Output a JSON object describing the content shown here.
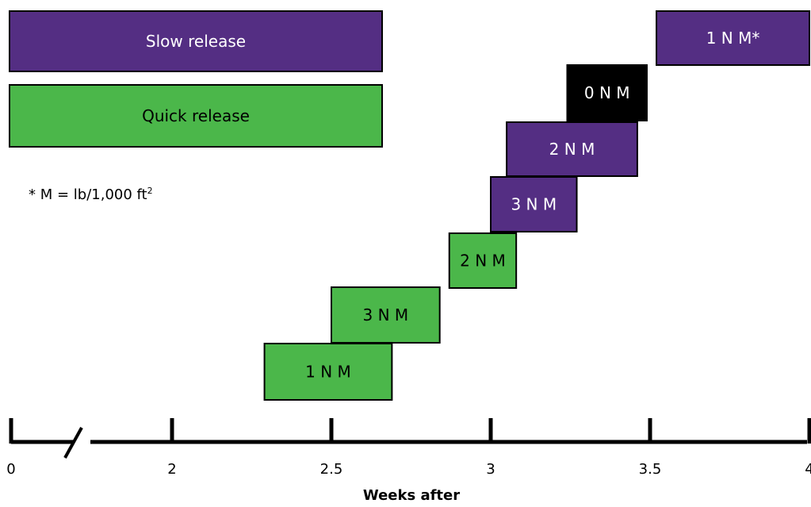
{
  "chart_data": {
    "type": "bar",
    "orientation": "horizontal-timeline",
    "xlabel": "Weeks after",
    "x_ticks": [
      "0",
      "2",
      "2.5",
      "3",
      "3.5",
      "4"
    ],
    "axis_break_after": "0",
    "legend": [
      {
        "name": "Slow release",
        "color": "#542e83"
      },
      {
        "name": "Quick release",
        "color": "#4bb74a"
      }
    ],
    "footnote": {
      "text": "* M = lb/1,000 ft",
      "superscript": "2"
    },
    "bars": [
      {
        "label": "1 N M*",
        "type": "Slow release",
        "start": 3.52,
        "end": 4.0,
        "color": "#542e83",
        "text_color": "#ffffff"
      },
      {
        "label": "0 N M",
        "type": "none",
        "start": 3.24,
        "end": 3.49,
        "color": "#000000",
        "text_color": "#ffffff"
      },
      {
        "label": "2 N M",
        "type": "Slow release",
        "start": 3.05,
        "end": 3.46,
        "color": "#542e83",
        "text_color": "#ffffff"
      },
      {
        "label": "3 N M",
        "type": "Slow release",
        "start": 3.0,
        "end": 3.27,
        "color": "#542e83",
        "text_color": "#ffffff"
      },
      {
        "label": "2 N M",
        "type": "Quick release",
        "start": 2.87,
        "end": 3.08,
        "color": "#4bb74a",
        "text_color": "#000000"
      },
      {
        "label": "3 N M",
        "type": "Quick release",
        "start": 2.5,
        "end": 2.84,
        "color": "#4bb74a",
        "text_color": "#000000"
      },
      {
        "label": "1 N M",
        "type": "Quick release",
        "start": 2.29,
        "end": 2.69,
        "color": "#4bb74a",
        "text_color": "#000000"
      }
    ]
  }
}
